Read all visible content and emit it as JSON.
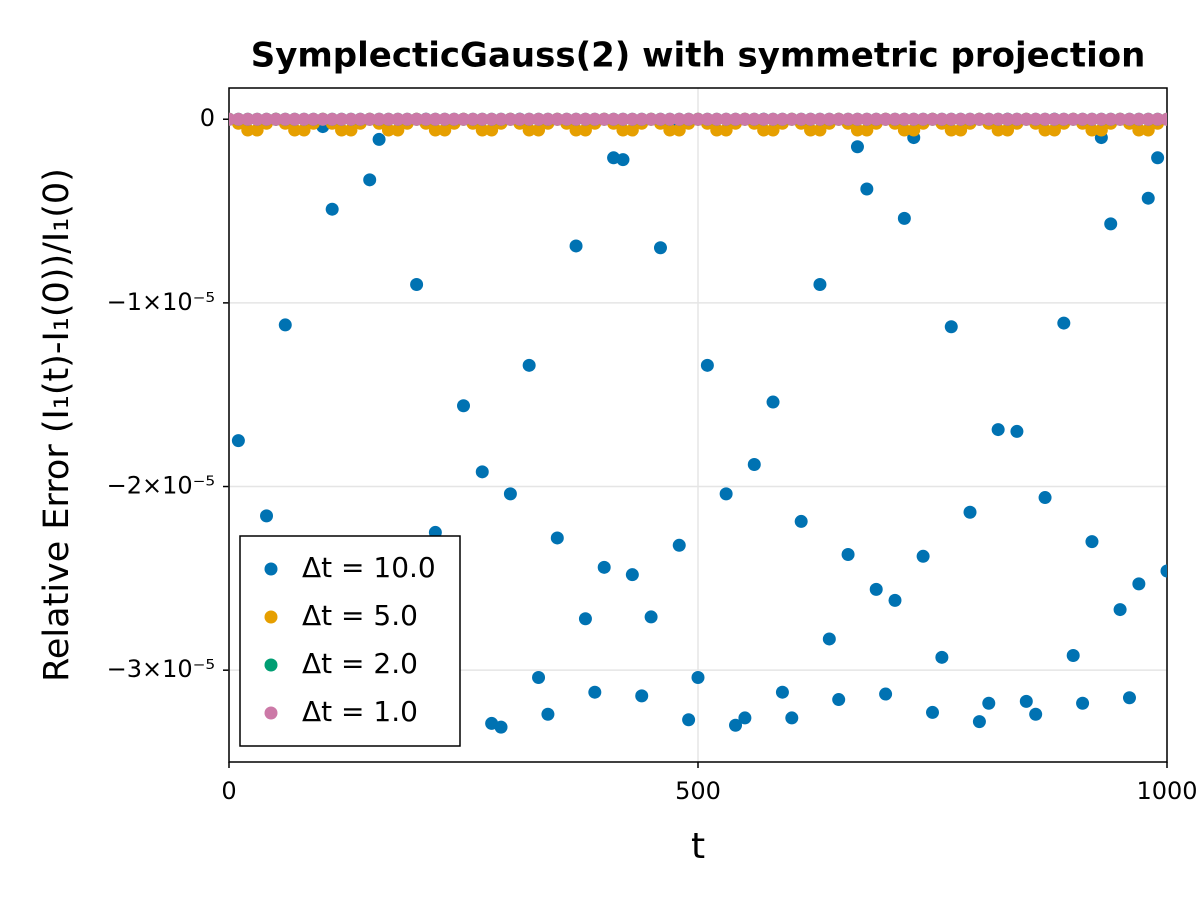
{
  "chart_data": {
    "type": "scatter",
    "title": "SymplecticGauss(2) with symmetric projection",
    "x_label": "t",
    "y_label": "Relative Error (I₁(t)-I₁(0))/I₁(0)",
    "xlim": [
      0,
      1000
    ],
    "ylim": [
      -3.5e-05,
      1.7e-06
    ],
    "xticks": [
      0,
      500,
      1000
    ],
    "yticks": [
      0,
      {
        "value": -1e-05,
        "label": "−1×10⁻⁵"
      },
      {
        "value": -2e-05,
        "label": "−2×10⁻⁵"
      },
      {
        "value": -3e-05,
        "label": "−3×10⁻⁵"
      }
    ],
    "grid": true,
    "legend": "bottom-left",
    "x": [
      0,
      10,
      20,
      30,
      40,
      50,
      60,
      70,
      80,
      90,
      100,
      110,
      120,
      130,
      140,
      150,
      160,
      170,
      180,
      190,
      200,
      210,
      220,
      230,
      240,
      250,
      260,
      270,
      280,
      290,
      300,
      310,
      320,
      330,
      340,
      350,
      360,
      370,
      380,
      390,
      400,
      410,
      420,
      430,
      440,
      450,
      460,
      470,
      480,
      490,
      500,
      510,
      520,
      530,
      540,
      550,
      560,
      570,
      580,
      590,
      600,
      610,
      620,
      630,
      640,
      650,
      660,
      670,
      680,
      690,
      700,
      710,
      720,
      730,
      740,
      750,
      760,
      770,
      780,
      790,
      800,
      810,
      820,
      830,
      840,
      850,
      860,
      870,
      880,
      890,
      900,
      910,
      920,
      930,
      940,
      950,
      960,
      970,
      980,
      990,
      1000
    ],
    "series": [
      {
        "name": "Δt = 10.0",
        "color": "#0072b2",
        "x": [
          10,
          40,
          50,
          60,
          100,
          110,
          150,
          160,
          200,
          210,
          220,
          250,
          270,
          280,
          290,
          300,
          310,
          320,
          330,
          340,
          350,
          370,
          380,
          390,
          400,
          410,
          420,
          430,
          440,
          450,
          460,
          470,
          480,
          490,
          500,
          510,
          530,
          540,
          550,
          560,
          570,
          580,
          590,
          600,
          610,
          630,
          640,
          650,
          660,
          670,
          680,
          690,
          700,
          710,
          720,
          730,
          740,
          750,
          760,
          770,
          790,
          800,
          810,
          820,
          830,
          840,
          850,
          860,
          870,
          880,
          890,
          900,
          910,
          920,
          930,
          940,
          950,
          960,
          970,
          980,
          990,
          1000
        ],
        "values": [
          -1.75e-05,
          -2.16e-05,
          0,
          -1.12e-05,
          -4e-07,
          -4.9e-06,
          -3.3e-06,
          -1.1e-06,
          -9e-06,
          0,
          -2.25e-05,
          -1.56e-05,
          -1.92e-05,
          -3.29e-05,
          -3.31e-05,
          -2.04e-05,
          0,
          -1.34e-05,
          -3.04e-05,
          -3.24e-05,
          -2.28e-05,
          -6.9e-06,
          -2.72e-05,
          -3.12e-05,
          -2.44e-05,
          -2.1e-06,
          -2.2e-06,
          -2.48e-05,
          -3.14e-05,
          -2.71e-05,
          -7e-06,
          -3e-07,
          -2.32e-05,
          -3.27e-05,
          -3.04e-05,
          -1.34e-05,
          -2.04e-05,
          -3.3e-05,
          -3.26e-05,
          -1.88e-05,
          0,
          -1.54e-05,
          -3.12e-05,
          -3.26e-05,
          -2.19e-05,
          -9e-06,
          -2.83e-05,
          -3.16e-05,
          -2.37e-05,
          -1.5e-06,
          -3.8e-06,
          -2.56e-05,
          -3.13e-05,
          -2.62e-05,
          -5.4e-06,
          -1e-06,
          -2.38e-05,
          -3.23e-05,
          -2.93e-05,
          -1.13e-05,
          -2.14e-05,
          -3.28e-05,
          -3.18e-05,
          -1.69e-05,
          0,
          -1.7e-05,
          -3.17e-05,
          -3.24e-05,
          -2.06e-05,
          0,
          -1.11e-05,
          -2.92e-05,
          -3.18e-05,
          -2.3e-05,
          -1e-06,
          -5.7e-06,
          -2.67e-05,
          -3.15e-05,
          -2.53e-05,
          -4.3e-06,
          -2.1e-06,
          -2.46e-05
        ]
      },
      {
        "name": "Δt = 5.0",
        "color": "#e69f00",
        "values": [
          0,
          -2.2e-07,
          -5.9e-07,
          -5.9e-07,
          -2.2e-07,
          0,
          -2.2e-07,
          -5.9e-07,
          -5.9e-07,
          -2.2e-07,
          0,
          -2.2e-07,
          -5.9e-07,
          -5.9e-07,
          -2.2e-07,
          0,
          -2.2e-07,
          -5.9e-07,
          -5.9e-07,
          -2.2e-07,
          0,
          -2.2e-07,
          -5.9e-07,
          -5.9e-07,
          -2.2e-07,
          0,
          -2.2e-07,
          -5.9e-07,
          -5.9e-07,
          -2.2e-07,
          0,
          -2.2e-07,
          -5.9e-07,
          -5.9e-07,
          -2.2e-07,
          0,
          -2.2e-07,
          -5.9e-07,
          -5.9e-07,
          -2.2e-07,
          0,
          -2.2e-07,
          -5.9e-07,
          -5.9e-07,
          -2.2e-07,
          0,
          -2.2e-07,
          -5.9e-07,
          -5.9e-07,
          -2.2e-07,
          0,
          -2.2e-07,
          -5.9e-07,
          -5.9e-07,
          -2.2e-07,
          0,
          -2.2e-07,
          -5.9e-07,
          -5.9e-07,
          -2.2e-07,
          0,
          -2.2e-07,
          -5.9e-07,
          -5.9e-07,
          -2.2e-07,
          0,
          -2.2e-07,
          -5.9e-07,
          -5.9e-07,
          -2.2e-07,
          0,
          -2.2e-07,
          -5.9e-07,
          -5.9e-07,
          -2.2e-07,
          0,
          -2.2e-07,
          -5.9e-07,
          -5.9e-07,
          -2.2e-07,
          0,
          -2.2e-07,
          -5.9e-07,
          -5.9e-07,
          -2.2e-07,
          0,
          -2.2e-07,
          -5.9e-07,
          -5.9e-07,
          -2.2e-07,
          0,
          -2.2e-07,
          -5.9e-07,
          -5.9e-07,
          -2.2e-07,
          0,
          -2.2e-07,
          -5.9e-07,
          -5.9e-07,
          -2.2e-07,
          0
        ]
      },
      {
        "name": "Δt = 2.0",
        "color": "#009e73",
        "values": [
          0,
          0,
          0,
          0,
          0,
          0,
          0,
          0,
          0,
          0,
          0,
          0,
          0,
          0,
          0,
          0,
          0,
          0,
          0,
          0,
          0,
          0,
          0,
          0,
          0,
          0,
          0,
          0,
          0,
          0,
          0,
          0,
          0,
          0,
          0,
          0,
          0,
          0,
          0,
          0,
          0,
          0,
          0,
          0,
          0,
          0,
          0,
          0,
          0,
          0,
          0,
          0,
          0,
          0,
          0,
          0,
          0,
          0,
          0,
          0,
          0,
          0,
          0,
          0,
          0,
          0,
          0,
          0,
          0,
          0,
          0,
          0,
          0,
          0,
          0,
          0,
          0,
          0,
          0,
          0,
          0,
          0,
          0,
          0,
          0,
          0,
          0,
          0,
          0,
          0,
          0,
          0,
          0,
          0,
          0,
          0,
          0,
          0,
          0,
          0,
          0
        ]
      },
      {
        "name": "Δt = 1.0",
        "color": "#cc79a7",
        "values": [
          0,
          0,
          0,
          0,
          0,
          0,
          0,
          0,
          0,
          0,
          0,
          0,
          0,
          0,
          0,
          0,
          0,
          0,
          0,
          0,
          0,
          0,
          0,
          0,
          0,
          0,
          0,
          0,
          0,
          0,
          0,
          0,
          0,
          0,
          0,
          0,
          0,
          0,
          0,
          0,
          0,
          0,
          0,
          0,
          0,
          0,
          0,
          0,
          0,
          0,
          0,
          0,
          0,
          0,
          0,
          0,
          0,
          0,
          0,
          0,
          0,
          0,
          0,
          0,
          0,
          0,
          0,
          0,
          0,
          0,
          0,
          0,
          0,
          0,
          0,
          0,
          0,
          0,
          0,
          0,
          0,
          0,
          0,
          0,
          0,
          0,
          0,
          0,
          0,
          0,
          0,
          0,
          0,
          0,
          0,
          0,
          0,
          0,
          0,
          0,
          0
        ]
      }
    ]
  }
}
